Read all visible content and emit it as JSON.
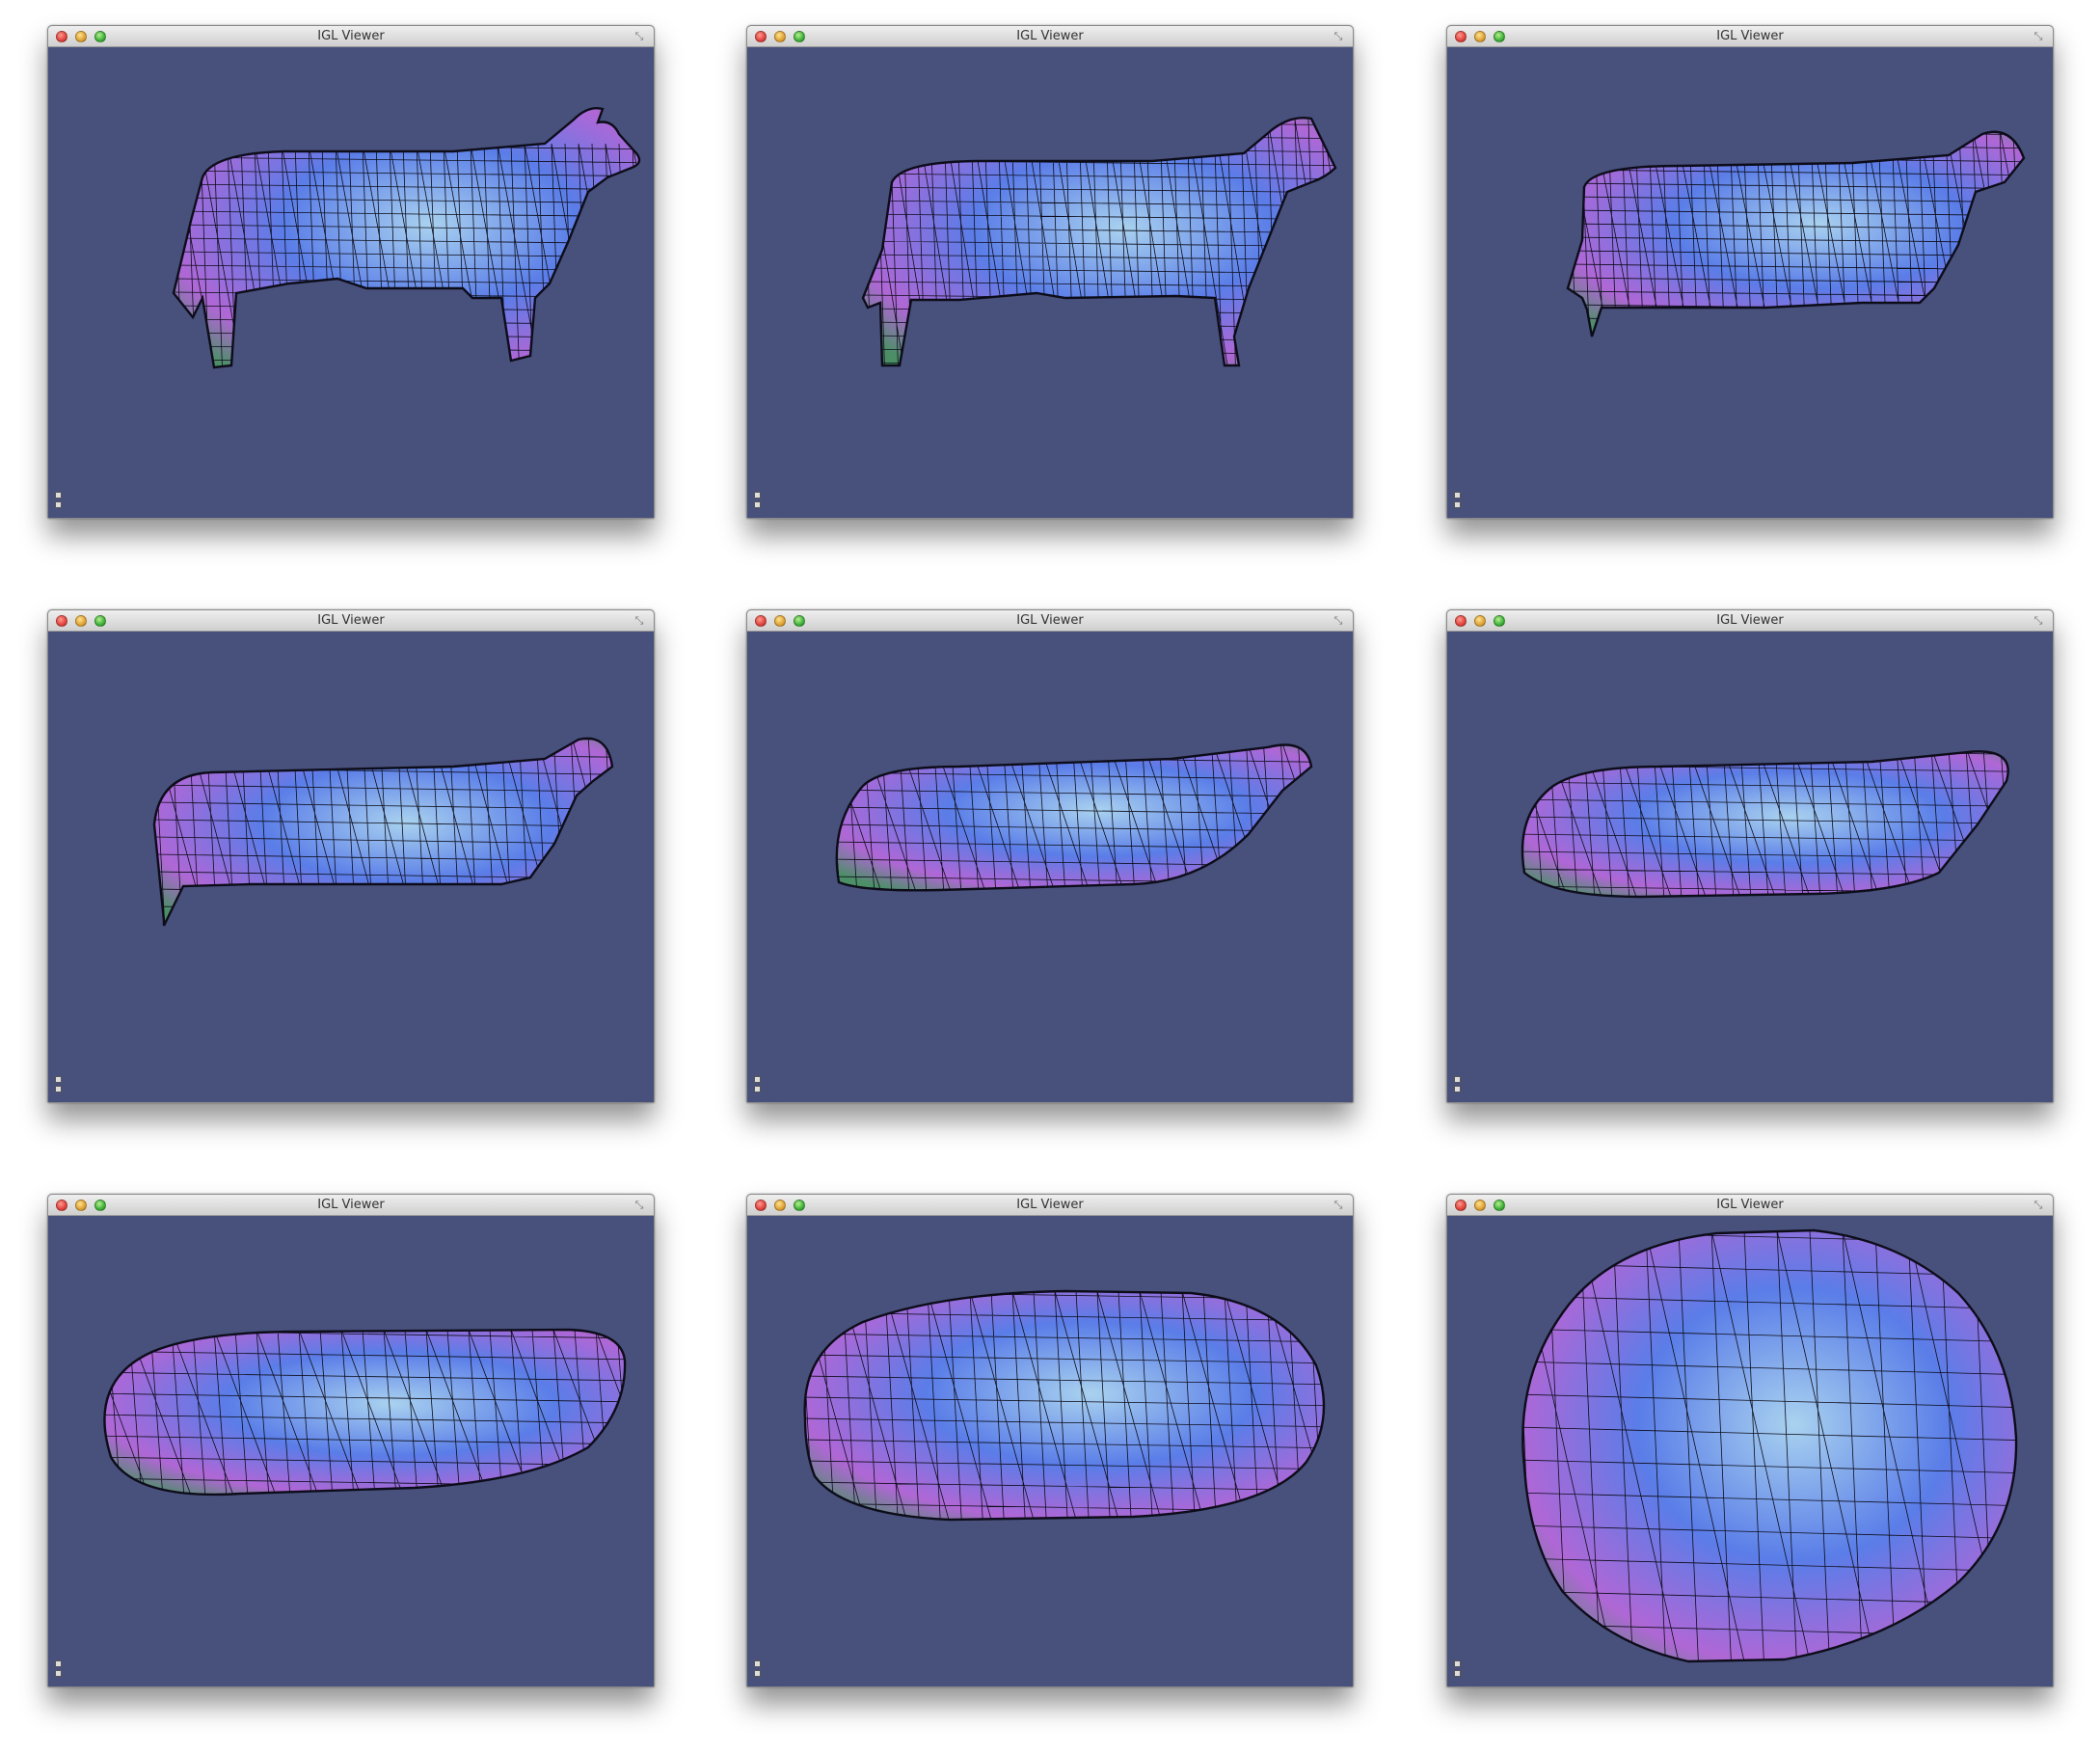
{
  "viewer_title": "IGL Viewer",
  "colors": {
    "viewport_background": "#48507c",
    "mesh_wire": "#0d0d1a",
    "shade_light": "#a9d2ef",
    "shade_mid": "#5a7de8",
    "shade_magenta": "#b067d6",
    "shade_green": "#4c8f67"
  },
  "icons": {
    "close": "close-button",
    "minimize": "minimize-button",
    "zoom": "zoom-button",
    "fullscreen": "fullscreen-icon",
    "tool_top": "window-tool-icon",
    "tool_bottom": "settings-tool-icon"
  },
  "windows": [
    {
      "title": "IGL Viewer",
      "shape": "cow-detailed"
    },
    {
      "title": "IGL Viewer",
      "shape": "cow-smoothed"
    },
    {
      "title": "IGL Viewer",
      "shape": "cow-box-legs"
    },
    {
      "title": "IGL Viewer",
      "shape": "blob-with-head"
    },
    {
      "title": "IGL Viewer",
      "shape": "pod-with-snout"
    },
    {
      "title": "IGL Viewer",
      "shape": "elongated-pod"
    },
    {
      "title": "IGL Viewer",
      "shape": "capsule"
    },
    {
      "title": "IGL Viewer",
      "shape": "ellipsoid"
    },
    {
      "title": "IGL Viewer",
      "shape": "sphere"
    }
  ]
}
